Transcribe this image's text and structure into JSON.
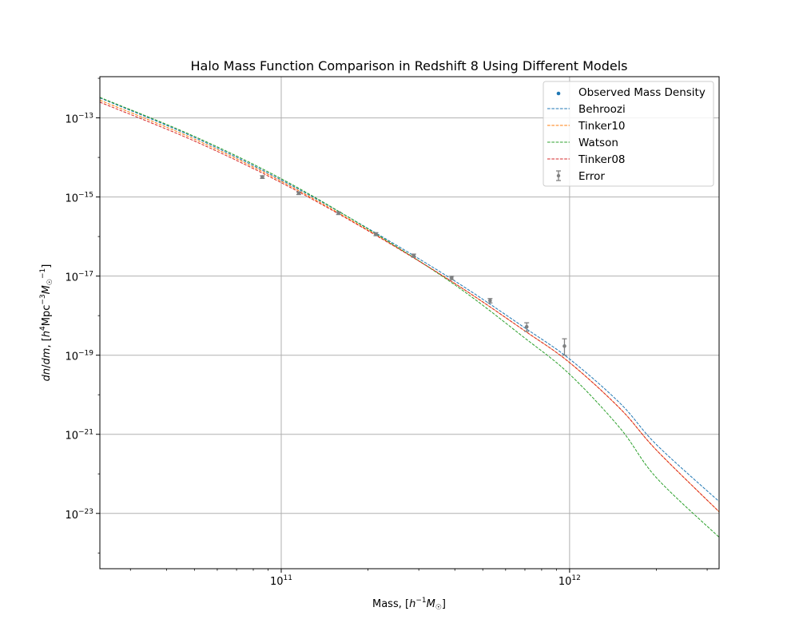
{
  "chart_data": {
    "type": "line",
    "title": "Halo Mass Function Comparison in Redshift 8 Using Different Models",
    "xlabel_html": "Mass, [h⁻¹M☉]",
    "ylabel_html": "dn/dm, [h⁴Mpc⁻³M☉⁻¹]",
    "xscale": "log",
    "yscale": "log",
    "xlim": [
      23500000000.0,
      3300000000000.0
    ],
    "ylim": [
      4e-25,
      1.1e-12
    ],
    "x_ticks": [
      {
        "value": 100000000000.0,
        "base": "10",
        "exp": "11"
      },
      {
        "value": 1000000000000.0,
        "base": "10",
        "exp": "12"
      }
    ],
    "y_ticks": [
      {
        "value": 1e-13,
        "base": "10",
        "exp": "−13"
      },
      {
        "value": 1e-15,
        "base": "10",
        "exp": "−15"
      },
      {
        "value": 1e-17,
        "base": "10",
        "exp": "−17"
      },
      {
        "value": 1e-19,
        "base": "10",
        "exp": "−19"
      },
      {
        "value": 1e-21,
        "base": "10",
        "exp": "−21"
      },
      {
        "value": 1e-23,
        "base": "10",
        "exp": "−23"
      }
    ],
    "grid": true,
    "legend_position": "upper right",
    "series": [
      {
        "name": "Behroozi",
        "color": "#1f77b4",
        "style": "dashed",
        "x": [
          23500000000.0,
          50000000000.0,
          100000000000.0,
          200000000000.0,
          400000000000.0,
          700000000000.0,
          1000000000000.0,
          1500000000000.0,
          2000000000000.0,
          3300000000000.0
        ],
        "y": [
          3.2e-13,
          3.2e-14,
          2.7e-15,
          1.6e-16,
          7.5e-18,
          4.9e-19,
          8e-20,
          6e-21,
          5.5e-22,
          2e-23
        ]
      },
      {
        "name": "Tinker10",
        "color": "#ff7f0e",
        "style": "dashed",
        "x": [
          23500000000.0,
          50000000000.0,
          100000000000.0,
          200000000000.0,
          400000000000.0,
          700000000000.0,
          1000000000000.0,
          1500000000000.0,
          2000000000000.0,
          3300000000000.0
        ],
        "y": [
          2.8e-13,
          2.9e-14,
          2.5e-15,
          1.45e-16,
          6.5e-18,
          4.1e-19,
          6.5e-20,
          4.4e-21,
          4e-22,
          1.1e-23
        ]
      },
      {
        "name": "Watson",
        "color": "#2ca02c",
        "style": "dashed",
        "x": [
          23500000000.0,
          50000000000.0,
          100000000000.0,
          200000000000.0,
          400000000000.0,
          700000000000.0,
          1000000000000.0,
          1500000000000.0,
          2000000000000.0,
          3300000000000.0
        ],
        "y": [
          3.3e-13,
          3.4e-14,
          2.9e-15,
          1.55e-16,
          6e-18,
          2.7e-19,
          3.3e-20,
          1.4e-21,
          8e-23,
          2.5e-24
        ]
      },
      {
        "name": "Tinker08",
        "color": "#d62728",
        "style": "dashed",
        "x": [
          23500000000.0,
          50000000000.0,
          100000000000.0,
          200000000000.0,
          400000000000.0,
          700000000000.0,
          1000000000000.0,
          1500000000000.0,
          2000000000000.0,
          3300000000000.0
        ],
        "y": [
          2.5e-13,
          2.6e-14,
          2.3e-15,
          1.4e-16,
          6.5e-18,
          4.1e-19,
          6.5e-20,
          4.4e-21,
          4e-22,
          1.1e-23
        ]
      }
    ],
    "observed": {
      "name": "Observed Mass Density",
      "color": "#1f77b4",
      "x": [
        86000000000.0,
        115000000000.0,
        158000000000.0,
        213000000000.0,
        288000000000.0,
        390000000000.0,
        530000000000.0,
        710000000000.0,
        960000000000.0
      ],
      "y": [
        3.2e-15,
        1.25e-15,
        3.9e-16,
        1.15e-16,
        3.3e-17,
        9e-18,
        2.4e-18,
        5.2e-19,
        1.7e-19
      ]
    },
    "errors": {
      "name": "Error",
      "color": "#808080",
      "x": [
        86000000000.0,
        115000000000.0,
        158000000000.0,
        213000000000.0,
        288000000000.0,
        390000000000.0,
        530000000000.0,
        710000000000.0,
        960000000000.0
      ],
      "y": [
        3.2e-15,
        1.25e-15,
        3.9e-16,
        1.15e-16,
        3.3e-17,
        9e-18,
        2.4e-18,
        5.2e-19,
        1.7e-19
      ],
      "y_low": [
        2.95e-15,
        1.15e-15,
        3.6e-16,
        1.05e-16,
        3e-17,
        8.1e-18,
        2.1e-18,
        4e-19,
        1e-19
      ],
      "y_high": [
        3.45e-15,
        1.35e-15,
        4.2e-16,
        1.25e-16,
        3.6e-17,
        9.9e-18,
        2.7e-18,
        6.6e-19,
        2.6e-19
      ]
    }
  }
}
